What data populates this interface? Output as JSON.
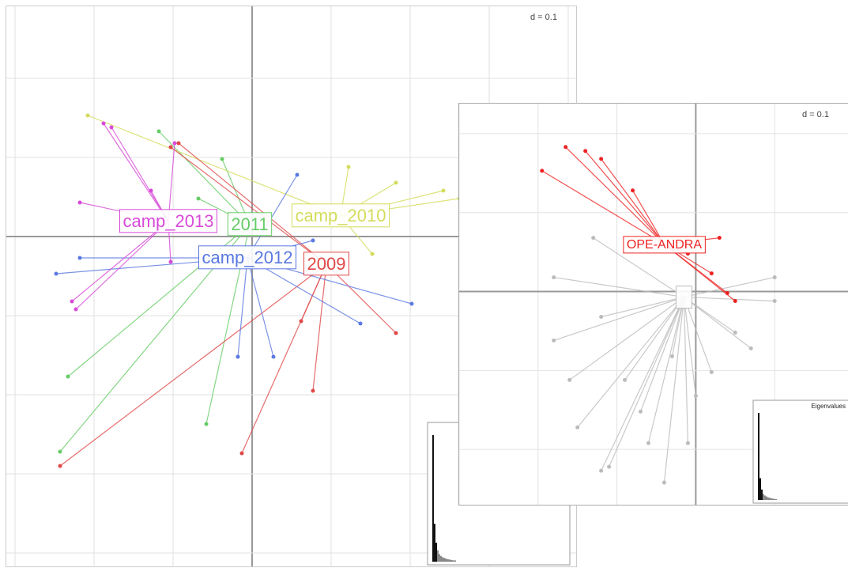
{
  "chart_data": [
    {
      "type": "scatter",
      "scale_label": "d = 0.1",
      "xlim": [
        -0.311,
        0.41
      ],
      "ylim": [
        -0.417,
        0.291
      ],
      "xticks": [
        -0.3,
        -0.2,
        -0.1,
        0,
        0.1,
        0.2,
        0.3,
        0.4
      ],
      "yticks": [
        -0.4,
        -0.3,
        -0.2,
        -0.1,
        0,
        0.1,
        0.2
      ],
      "grid": true,
      "classes": [
        {
          "name": "2011",
          "color": "#66cc66",
          "center": [
            -0.003,
            0.015
          ],
          "points_x": [
            -0.243,
            -0.233,
            -0.118,
            -0.058,
            -0.038,
            -0.068
          ],
          "points_y": [
            -0.272,
            -0.177,
            0.133,
            -0.237,
            0.098,
            0.048
          ]
        },
        {
          "name": "camp_2010",
          "color": "#d4dc5a",
          "center": [
            0.112,
            0.026
          ],
          "points_x": [
            0.262,
            -0.208,
            0.122,
            0.242,
            0.182,
            0.152
          ],
          "points_y": [
            0.048,
            0.153,
            0.088,
            0.058,
            0.068,
            -0.022
          ]
        },
        {
          "name": "2009",
          "color": "#e04848",
          "center": [
            0.094,
            -0.035
          ],
          "points_x": [
            -0.243,
            0.077,
            -0.013,
            -0.093,
            0.182,
            0.062,
            -0.103
          ],
          "points_y": [
            -0.29,
            -0.195,
            -0.274,
            0.118,
            -0.122,
            -0.107,
            0.113
          ]
        },
        {
          "name": "camp_2012",
          "color": "#5a78e0",
          "center": [
            -0.006,
            -0.027
          ],
          "points_x": [
            -0.248,
            0.057,
            -0.018,
            0.137,
            0.202,
            0.027,
            -0.218,
            0.077
          ],
          "points_y": [
            -0.047,
            0.078,
            -0.152,
            -0.11,
            -0.085,
            -0.152,
            -0.027,
            -0.005
          ]
        },
        {
          "name": "camp_2013",
          "color": "#d84ad8",
          "center": [
            -0.106,
            0.019
          ],
          "points_x": [
            -0.188,
            -0.223,
            -0.098,
            -0.218,
            -0.103,
            -0.178,
            -0.128,
            -0.228
          ],
          "points_y": [
            0.143,
            -0.092,
            0.118,
            0.043,
            -0.032,
            0.138,
            0.058,
            -0.082
          ]
        }
      ],
      "eigenvalues": {
        "values": [
          1,
          0.3,
          0.15,
          0.09,
          0.06,
          0.045,
          0.035,
          0.03,
          0.025,
          0.02,
          0.018,
          0.015,
          0.012,
          0.01,
          0.01
        ],
        "ylim": [
          0,
          1
        ]
      }
    },
    {
      "type": "scatter",
      "scale_label": "d = 0.1",
      "xlim": [
        -0.3,
        0.193
      ],
      "ylim": [
        -0.27,
        0.238
      ],
      "xticks": [
        -0.3,
        -0.2,
        -0.1,
        0,
        0.1
      ],
      "yticks": [
        -0.2,
        -0.1,
        0,
        0.1,
        0.2
      ],
      "grid": true,
      "classes": [
        {
          "color": "#bbbbbb",
          "center": [
            -0.015,
            -0.007
          ],
          "points_x": [
            -0.12,
            -0.15,
            -0.06,
            0,
            0.07,
            0.1,
            -0.18,
            -0.09,
            -0.04,
            0.02,
            0.05,
            -0.16,
            -0.12,
            -0.07,
            -0.01,
            0.1,
            -0.18,
            -0.13,
            -0.11,
            -0.03
          ],
          "points_y": [
            -0.227,
            -0.172,
            -0.192,
            -0.132,
            -0.072,
            0.018,
            -0.062,
            -0.112,
            -0.242,
            -0.102,
            -0.052,
            -0.112,
            -0.032,
            -0.152,
            -0.192,
            -0.012,
            0.018,
            0.068,
            -0.222,
            -0.082
          ]
        },
        {
          "name": "OPE-ANDRA",
          "color": "#ee2222",
          "center": [
            -0.04,
            0.06
          ],
          "points_x": [
            -0.165,
            -0.195,
            0.05,
            0.02,
            -0.12,
            -0.14,
            0.04,
            -0.08,
            -0.01,
            0.03
          ],
          "points_y": [
            0.183,
            0.153,
            -0.012,
            0.023,
            0.168,
            0.178,
            -0.002,
            0.128,
            0.048,
            0.068
          ]
        }
      ],
      "eigenvalues": {
        "title": "Eigenvalues",
        "values": [
          1,
          0.25,
          0.12,
          0.07,
          0.05,
          0.04,
          0.03,
          0.025,
          0.02,
          0.015,
          0.012,
          0.01
        ],
        "ylim": [
          0,
          1
        ]
      }
    }
  ]
}
